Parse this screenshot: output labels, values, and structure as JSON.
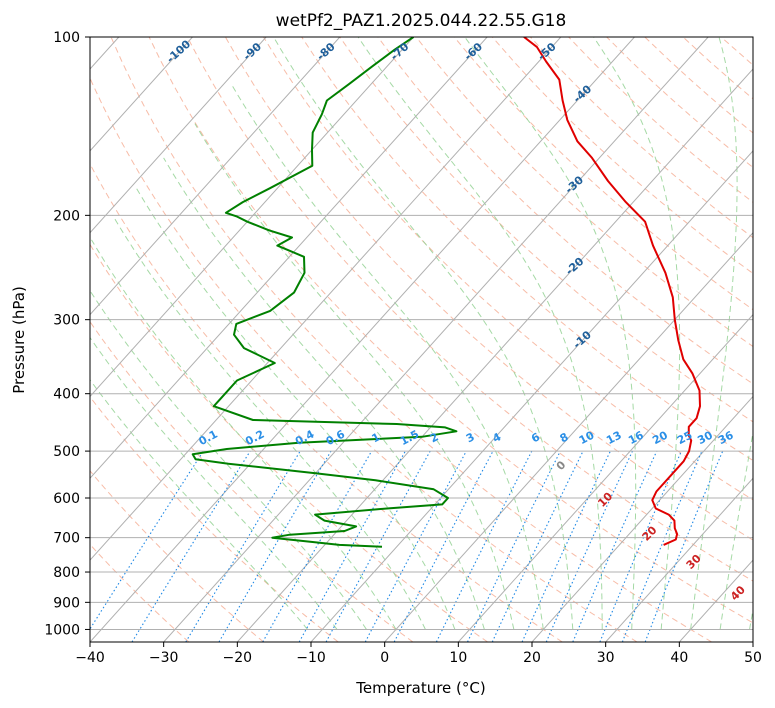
{
  "chart_data": {
    "type": "line",
    "subtype": "skew-T log-P diagram",
    "title": "wetPf2_PAZ1.2025.044.22.55.G18",
    "xlabel": "Temperature (°C)",
    "ylabel": "Pressure (hPa)",
    "xlim": [
      -40,
      50
    ],
    "ylim": [
      1050,
      100
    ],
    "y_scale": "log",
    "x_ticks": [
      "−40",
      "−30",
      "−20",
      "−10",
      "0",
      "10",
      "20",
      "30",
      "40",
      "50"
    ],
    "x_tick_values": [
      -40,
      -30,
      -20,
      -10,
      0,
      10,
      20,
      30,
      40,
      50
    ],
    "y_ticks": [
      "100",
      "200",
      "300",
      "400",
      "500",
      "600",
      "700",
      "800",
      "900",
      "1000"
    ],
    "y_tick_values": [
      100,
      200,
      300,
      400,
      500,
      600,
      700,
      800,
      900,
      1000
    ],
    "grid": true,
    "colors": {
      "temperature": "#e00000",
      "dewpoint": "#008000",
      "isotherm_grid": "#b0b0b0",
      "dry_adiabat": "#f4a58a",
      "moist_adiabat": "#8fcf8f",
      "mixing_ratio": "#1e88e5",
      "mixing_label": "#2b8fe6",
      "isotherm_label": "#1f5f9a",
      "adiabat_label": "#cc2222",
      "zero_label": "#888888"
    },
    "series": [
      {
        "name": "",
        "pressure": [
          720,
          705,
          690,
          675,
          655,
          640,
          625,
          605,
          585,
          565,
          545,
          520,
          500,
          480,
          470,
          455,
          440,
          420,
          395,
          370,
          350,
          325,
          300,
          275,
          250,
          225,
          205,
          190,
          175,
          160,
          150,
          138,
          128,
          118,
          110,
          104,
          100
        ],
        "values": [
          26,
          27,
          26.5,
          25.5,
          24.5,
          23,
          20.5,
          19,
          18.5,
          18.5,
          18.5,
          18.5,
          18,
          17,
          16,
          15,
          15,
          14,
          12,
          9,
          6,
          3,
          0,
          -3,
          -7,
          -12,
          -16,
          -21,
          -26,
          -31,
          -35,
          -39,
          -42,
          -45,
          -49,
          -52,
          -55
        ]
      },
      {
        "name": "",
        "pressure": [
          725,
          720,
          712,
          700,
          692,
          682,
          670,
          655,
          640,
          625,
          615,
          600,
          580,
          560,
          545,
          525,
          516,
          506,
          496,
          484,
          473,
          463,
          456,
          450,
          443,
          420,
          400,
          380,
          355,
          335,
          318,
          305,
          290,
          270,
          250,
          235,
          225,
          218,
          212,
          205,
          201,
          198,
          190,
          180,
          165,
          155,
          145,
          135,
          128,
          120,
          112,
          105,
          100
        ],
        "values": [
          -12,
          -18,
          -22,
          -28,
          -26,
          -19,
          -18,
          -23,
          -25,
          -16,
          -9,
          -9,
          -12,
          -21,
          -30,
          -43,
          -48,
          -49,
          -45,
          -36,
          -20,
          -16,
          -18,
          -25,
          -45,
          -52,
          -52,
          -52,
          -49,
          -55,
          -58,
          -59,
          -56,
          -55,
          -56,
          -58,
          -63,
          -62,
          -66,
          -70,
          -72,
          -74,
          -73,
          -71,
          -68,
          -70,
          -72,
          -73,
          -74,
          -73,
          -72,
          -71,
          -70
        ]
      }
    ],
    "isotherm_labels": [
      "-100",
      "-90",
      "-80",
      "-70",
      "-60",
      "-50",
      "-40",
      "-30",
      "-20",
      "-10"
    ],
    "isotherm_label_values": [
      -100,
      -90,
      -80,
      -70,
      -60,
      -50,
      -40,
      -30,
      -20,
      -10
    ],
    "mixing_ratio_labels": [
      "0.1",
      "0.2",
      "0.4",
      "0.6",
      "1",
      "1.5",
      "2",
      "3",
      "4",
      "6",
      "8",
      "10",
      "13",
      "16",
      "20",
      "25",
      "30",
      "36"
    ],
    "mixing_ratio_values": [
      0.1,
      0.2,
      0.4,
      0.6,
      1,
      1.5,
      2,
      3,
      4,
      6,
      8,
      10,
      13,
      16,
      20,
      25,
      30,
      36
    ],
    "moist_adiabat_labels": [
      "0",
      "10",
      "20",
      "30",
      "40"
    ],
    "moist_adiabat_values": [
      0,
      10,
      20,
      30,
      40
    ]
  }
}
